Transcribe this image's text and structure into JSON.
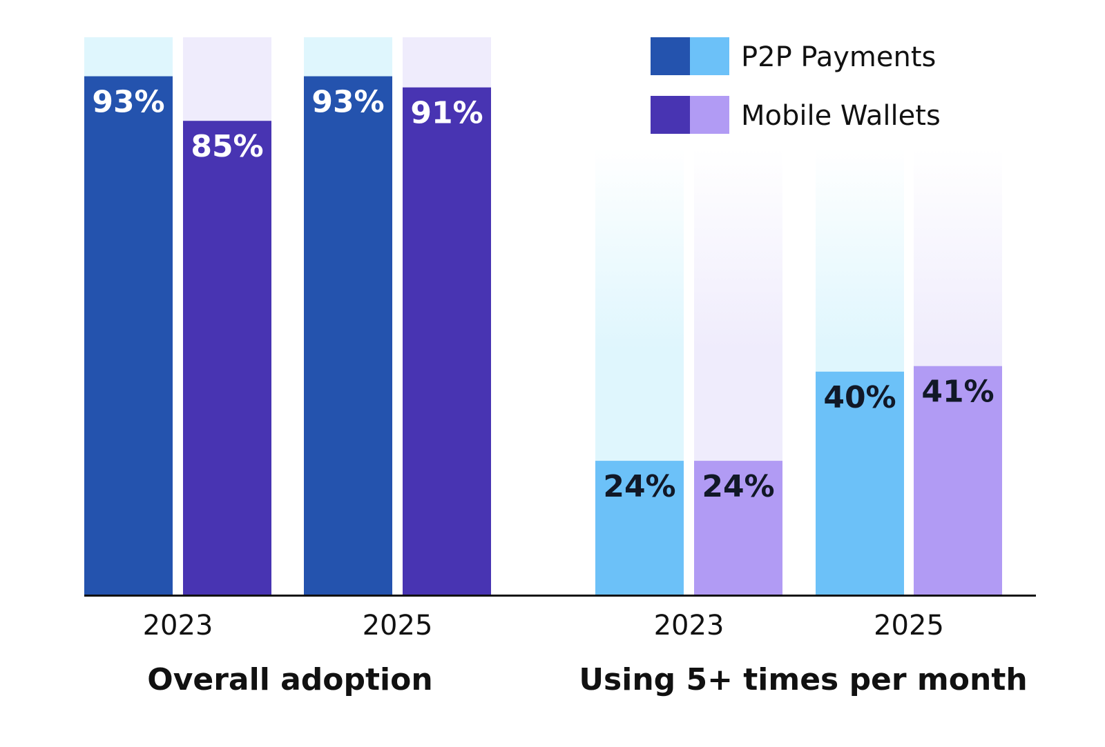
{
  "chart_data": {
    "type": "bar",
    "ylim": [
      0,
      100
    ],
    "legend": {
      "placement": "top-right",
      "entries": [
        {
          "name": "P2P Payments",
          "swatch_dark": "#2453ae",
          "swatch_light": "#6cc1f8"
        },
        {
          "name": "Mobile Wallets",
          "swatch_dark": "#4834b2",
          "swatch_light": "#b19bf4"
        }
      ]
    },
    "panels": [
      {
        "title": "Overall adoption",
        "categories": [
          "2023",
          "2025"
        ],
        "series": [
          {
            "name": "P2P Payments",
            "values": [
              93,
              93
            ],
            "labels": [
              "93%",
              "93%"
            ]
          },
          {
            "name": "Mobile Wallets",
            "values": [
              85,
              91
            ],
            "labels": [
              "85%",
              "91%"
            ]
          }
        ]
      },
      {
        "title": "Using 5+ times per month",
        "categories": [
          "2023",
          "2025"
        ],
        "series": [
          {
            "name": "P2P Payments",
            "values": [
              24,
              40
            ],
            "labels": [
              "24%",
              "40%"
            ]
          },
          {
            "name": "Mobile Wallets",
            "values": [
              24,
              41
            ],
            "labels": [
              "24%",
              "41%"
            ]
          }
        ]
      }
    ]
  },
  "colors": {
    "p2p_dark": "#2453ae",
    "wallet_dark": "#4834b2",
    "p2p_light": "#6cc1f8",
    "wallet_light": "#b19bf4",
    "p2p_bg": "#dff6fd",
    "wallet_bg": "#efecfc",
    "axis": "#111111",
    "label_on_dark": "#ffffff",
    "label_on_light": "#111827"
  }
}
